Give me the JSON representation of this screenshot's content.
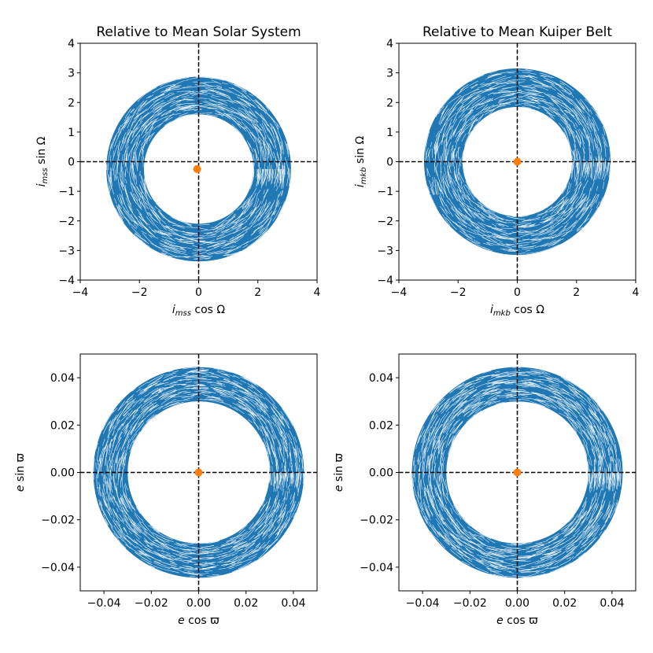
{
  "colors": {
    "series": "#1f77b4",
    "marker": "#ff7f0e",
    "refline": "#000000"
  },
  "chart_data": [
    {
      "type": "line",
      "title": "Relative to Mean Solar System",
      "xlabel": {
        "sym": "i",
        "sub": "mss",
        "rest": " cos Ω"
      },
      "ylabel": {
        "sym": "i",
        "sub": "mss",
        "rest": " sin Ω"
      },
      "xlim": [
        -4,
        4
      ],
      "ylim": [
        -4,
        4
      ],
      "xticks": [
        -4,
        -2,
        0,
        2,
        4
      ],
      "xtick_labels": [
        "−4",
        "−2",
        "0",
        "2",
        "4"
      ],
      "yticks": [
        -4,
        -3,
        -2,
        -1,
        0,
        1,
        2,
        3,
        4
      ],
      "ytick_labels": [
        "−4",
        "−3",
        "−2",
        "−1",
        "0",
        "1",
        "2",
        "3",
        "4"
      ],
      "grid": false,
      "reference_lines": {
        "x": 0,
        "y": 0,
        "style": "dashed"
      },
      "ring": {
        "center": [
          0,
          -0.25
        ],
        "inner_radius": 1.85,
        "outer_radius": 3.12
      },
      "marker": {
        "x": -0.05,
        "y": -0.25
      }
    },
    {
      "type": "line",
      "title": "Relative to Mean Kuiper Belt",
      "xlabel": {
        "sym": "i",
        "sub": "mkb",
        "rest": " cos Ω"
      },
      "ylabel": {
        "sym": "i",
        "sub": "mkb",
        "rest": " sin Ω"
      },
      "xlim": [
        -4,
        4
      ],
      "ylim": [
        -4,
        4
      ],
      "xticks": [
        -4,
        -2,
        0,
        2,
        4
      ],
      "xtick_labels": [
        "−4",
        "−2",
        "0",
        "2",
        "4"
      ],
      "yticks": [
        -4,
        -3,
        -2,
        -1,
        0,
        1,
        2,
        3,
        4
      ],
      "ytick_labels": [
        "−4",
        "−3",
        "−2",
        "−1",
        "0",
        "1",
        "2",
        "3",
        "4"
      ],
      "grid": false,
      "reference_lines": {
        "x": 0,
        "y": 0,
        "style": "dashed"
      },
      "ring": {
        "center": [
          0,
          0
        ],
        "inner_radius": 1.85,
        "outer_radius": 3.15
      },
      "marker": {
        "x": 0,
        "y": 0
      }
    },
    {
      "type": "line",
      "title": "",
      "xlabel": {
        "sym": "e",
        "sub": "",
        "rest": " cos ϖ"
      },
      "ylabel": {
        "sym": "e",
        "sub": "",
        "rest": " sin ϖ"
      },
      "xlim": [
        -0.05,
        0.05
      ],
      "ylim": [
        -0.05,
        0.05
      ],
      "xticks": [
        -0.04,
        -0.02,
        0,
        0.02,
        0.04
      ],
      "xtick_labels": [
        "−0.04",
        "−0.02",
        "0.00",
        "0.02",
        "0.04"
      ],
      "yticks": [
        -0.04,
        -0.02,
        0,
        0.02,
        0.04
      ],
      "ytick_labels": [
        "−0.04",
        "−0.02",
        "0.00",
        "0.02",
        "0.04"
      ],
      "grid": false,
      "reference_lines": {
        "x": 0,
        "y": 0,
        "style": "dashed"
      },
      "ring": {
        "center": [
          0,
          0
        ],
        "inner_radius": 0.03,
        "outer_radius": 0.0445
      },
      "marker": {
        "x": 0,
        "y": 0
      }
    },
    {
      "type": "line",
      "title": "",
      "xlabel": {
        "sym": "e",
        "sub": "",
        "rest": " cos ϖ"
      },
      "ylabel": {
        "sym": "e",
        "sub": "",
        "rest": " sin ϖ"
      },
      "xlim": [
        -0.05,
        0.05
      ],
      "ylim": [
        -0.05,
        0.05
      ],
      "xticks": [
        -0.04,
        -0.02,
        0,
        0.02,
        0.04
      ],
      "xtick_labels": [
        "−0.04",
        "−0.02",
        "0.00",
        "0.02",
        "0.04"
      ],
      "yticks": [
        -0.04,
        -0.02,
        0,
        0.02,
        0.04
      ],
      "ytick_labels": [
        "−0.04",
        "−0.02",
        "0.00",
        "0.02",
        "0.04"
      ],
      "grid": false,
      "reference_lines": {
        "x": 0,
        "y": 0,
        "style": "dashed"
      },
      "ring": {
        "center": [
          0,
          0
        ],
        "inner_radius": 0.03,
        "outer_radius": 0.0445
      },
      "marker": {
        "x": 0,
        "y": 0
      }
    }
  ]
}
